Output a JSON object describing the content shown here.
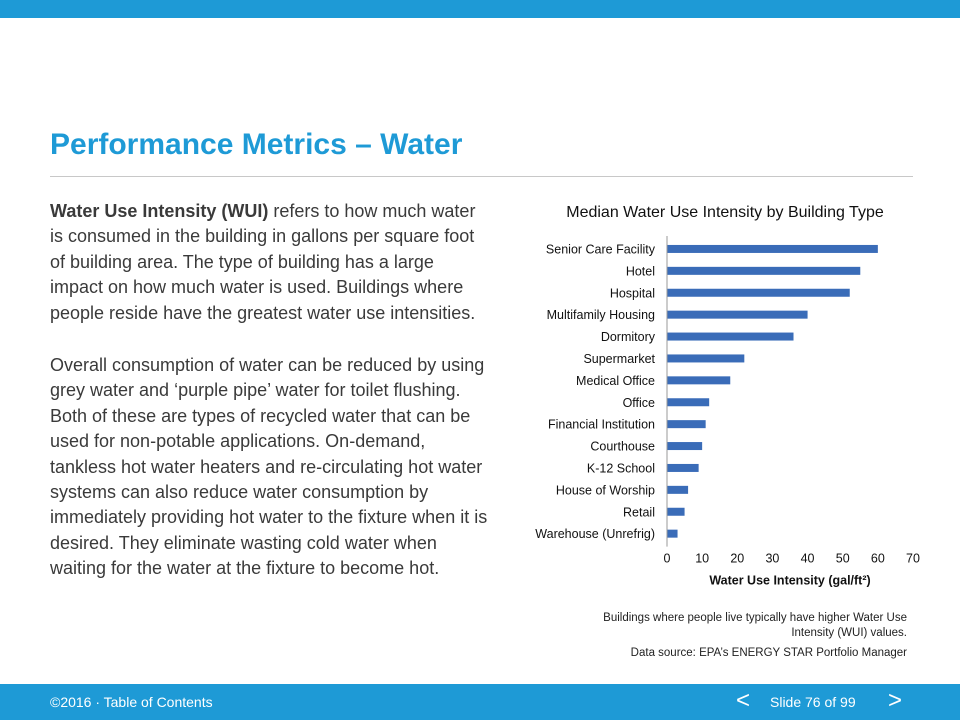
{
  "slide": {
    "title": "Performance Metrics – Water",
    "para1_bold": "Water Use Intensity (WUI)",
    "para1_rest": " refers to how much water is consumed in the building in gallons per square foot of building area. The type of building has a large impact on how much water is used. Buildings where people reside have the greatest water use intensities.",
    "para2": "Overall consumption of water can be reduced by using grey water and ‘purple pipe’ water for toilet flushing. Both of these are types of recycled water that can be used for non-potable applications. On-demand, tankless hot water heaters and re-circulating hot water systems can also reduce water consumption by immediately providing hot water to the fixture when it is desired. They eliminate wasting cold water when waiting for the water at the fixture to become hot.",
    "caption": "Buildings where people live typically have higher Water Use Intensity (WUI) values.",
    "source": "Data source: EPA’s ENERGY STAR Portfolio Manager"
  },
  "footer": {
    "copyright": "©2016 · Table of Contents",
    "prev": "<",
    "slide_label": "Slide 76 of 99",
    "next": ">"
  },
  "colors": {
    "accent": "#1e9ad6",
    "bar": "#3a6cb8"
  },
  "chart_data": {
    "type": "bar",
    "orientation": "horizontal",
    "title": "Median Water Use Intensity by Building Type",
    "xlabel": "Water Use Intensity (gal/ft²)",
    "ylabel": "",
    "xlim": [
      0,
      70
    ],
    "xticks": [
      0,
      10,
      20,
      30,
      40,
      50,
      60,
      70
    ],
    "grid": false,
    "categories": [
      "Senior Care Facility",
      "Hotel",
      "Hospital",
      "Multifamily Housing",
      "Dormitory",
      "Supermarket",
      "Medical Office",
      "Office",
      "Financial Institution",
      "Courthouse",
      "K-12 School",
      "House of Worship",
      "Retail",
      "Warehouse (Unrefrig)"
    ],
    "values": [
      60,
      55,
      52,
      40,
      36,
      22,
      18,
      12,
      11,
      10,
      9,
      6,
      5,
      3
    ]
  }
}
